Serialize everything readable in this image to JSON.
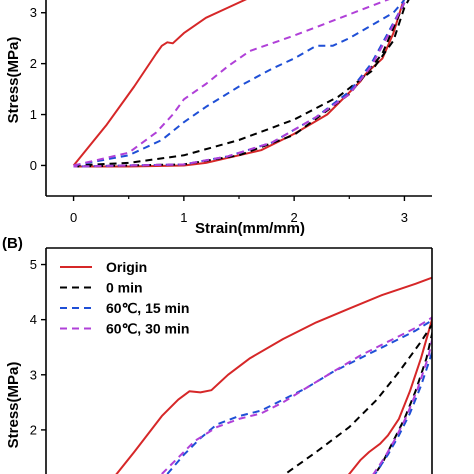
{
  "chart_data": [
    {
      "panel_label": "",
      "type": "line",
      "xlabel": "Strain(mm/mm)",
      "ylabel": "Stress(MPa)",
      "xlim": [
        -0.25,
        3.25
      ],
      "ylim": [
        -0.6,
        3.25
      ],
      "x_ticks": [
        "0",
        "1",
        "2",
        "3"
      ],
      "y_ticks": [
        "0",
        "1",
        "2",
        "3"
      ],
      "series": [
        {
          "key": "origin",
          "color": "#d62728",
          "dash": "solid",
          "points": [
            [
              0,
              0
            ],
            [
              0.3,
              0.8
            ],
            [
              0.55,
              1.55
            ],
            [
              0.75,
              2.2
            ],
            [
              0.8,
              2.35
            ],
            [
              0.85,
              2.42
            ],
            [
              0.9,
              2.4
            ],
            [
              1.0,
              2.6
            ],
            [
              1.2,
              2.9
            ],
            [
              1.4,
              3.1
            ],
            [
              1.6,
              3.3
            ]
          ]
        },
        {
          "key": "origin_return",
          "color": "#d62728",
          "dash": "solid",
          "points": [
            [
              3.0,
              3.3
            ],
            [
              2.9,
              2.6
            ],
            [
              2.8,
              2.1
            ],
            [
              2.7,
              1.9
            ],
            [
              2.65,
              1.8
            ],
            [
              2.6,
              1.65
            ],
            [
              2.3,
              1.0
            ],
            [
              2.0,
              0.62
            ],
            [
              1.7,
              0.3
            ],
            [
              1.4,
              0.15
            ],
            [
              1.2,
              0.05
            ],
            [
              1.0,
              0.0
            ],
            [
              0.5,
              -0.02
            ],
            [
              0,
              -0.02
            ]
          ]
        },
        {
          "key": "0min",
          "color": "#000000",
          "dash": "7,5",
          "points": [
            [
              0,
              0
            ],
            [
              0.5,
              0.05
            ],
            [
              1.0,
              0.2
            ],
            [
              1.5,
              0.5
            ],
            [
              2.0,
              0.9
            ],
            [
              2.4,
              1.35
            ],
            [
              2.7,
              1.85
            ],
            [
              2.9,
              2.45
            ],
            [
              3.0,
              3.1
            ],
            [
              3.05,
              3.3
            ]
          ]
        },
        {
          "key": "0min_return",
          "color": "#000000",
          "dash": "7,5",
          "points": [
            [
              3.0,
              3.2
            ],
            [
              2.8,
              2.2
            ],
            [
              2.5,
              1.4
            ],
            [
              2.0,
              0.6
            ],
            [
              1.5,
              0.2
            ],
            [
              1.0,
              0.02
            ],
            [
              0,
              -0.02
            ]
          ]
        },
        {
          "key": "15min",
          "color": "#1f4fd6",
          "dash": "7,5",
          "points": [
            [
              0,
              0
            ],
            [
              0.5,
              0.2
            ],
            [
              0.8,
              0.5
            ],
            [
              1.0,
              0.85
            ],
            [
              1.2,
              1.15
            ],
            [
              1.5,
              1.55
            ],
            [
              1.8,
              1.9
            ],
            [
              2.0,
              2.1
            ],
            [
              2.2,
              2.35
            ],
            [
              2.35,
              2.35
            ],
            [
              2.5,
              2.5
            ],
            [
              2.7,
              2.75
            ],
            [
              2.9,
              3.0
            ],
            [
              3.0,
              3.25
            ]
          ]
        },
        {
          "key": "15min_return",
          "color": "#1f4fd6",
          "dash": "7,5",
          "points": [
            [
              3.0,
              3.2
            ],
            [
              2.85,
              2.6
            ],
            [
              2.7,
              2.0
            ],
            [
              2.5,
              1.45
            ],
            [
              2.2,
              0.95
            ],
            [
              1.8,
              0.45
            ],
            [
              1.4,
              0.18
            ],
            [
              1.0,
              0.02
            ],
            [
              0,
              -0.02
            ]
          ]
        },
        {
          "key": "30min",
          "color": "#b040d8",
          "dash": "7,5",
          "points": [
            [
              0,
              0
            ],
            [
              0.5,
              0.25
            ],
            [
              0.75,
              0.65
            ],
            [
              0.9,
              1.0
            ],
            [
              1.0,
              1.3
            ],
            [
              1.2,
              1.6
            ],
            [
              1.4,
              1.95
            ],
            [
              1.6,
              2.25
            ],
            [
              1.8,
              2.4
            ],
            [
              2.0,
              2.55
            ],
            [
              2.3,
              2.8
            ],
            [
              2.6,
              3.05
            ],
            [
              2.9,
              3.3
            ]
          ]
        },
        {
          "key": "30min_return",
          "color": "#b040d8",
          "dash": "7,5",
          "points": [
            [
              3.0,
              3.2
            ],
            [
              2.85,
              2.55
            ],
            [
              2.7,
              1.95
            ],
            [
              2.5,
              1.4
            ],
            [
              2.2,
              0.95
            ],
            [
              1.8,
              0.45
            ],
            [
              1.4,
              0.18
            ],
            [
              1.0,
              0.02
            ],
            [
              0,
              -0.02
            ]
          ]
        }
      ]
    },
    {
      "panel_label": "(B)",
      "type": "line",
      "xlabel": "",
      "ylabel": "Stress(MPa)",
      "xlim": [
        -0.25,
        3.25
      ],
      "ylim": [
        1.2,
        5.3
      ],
      "x_ticks": [],
      "y_ticks": [
        "2",
        "3",
        "4",
        "5"
      ],
      "legend": {
        "placement": "top-left",
        "entries": [
          {
            "label": "Origin",
            "color": "#d62728",
            "dash": "solid"
          },
          {
            "label": "0 min",
            "color": "#000000",
            "dash": "7,5"
          },
          {
            "label": "60℃,   15 min",
            "color": "#1f4fd6",
            "dash": "7,5"
          },
          {
            "label": "60℃,   30 min",
            "color": "#b040d8",
            "dash": "7,5"
          }
        ]
      },
      "series": [
        {
          "key": "origin",
          "color": "#d62728",
          "dash": "solid",
          "points": [
            [
              0.35,
              1.1
            ],
            [
              0.55,
              1.6
            ],
            [
              0.8,
              2.25
            ],
            [
              0.95,
              2.55
            ],
            [
              1.05,
              2.7
            ],
            [
              1.15,
              2.68
            ],
            [
              1.25,
              2.72
            ],
            [
              1.4,
              3.0
            ],
            [
              1.6,
              3.3
            ],
            [
              1.9,
              3.65
            ],
            [
              2.2,
              3.95
            ],
            [
              2.5,
              4.2
            ],
            [
              2.8,
              4.45
            ],
            [
              3.1,
              4.65
            ],
            [
              3.3,
              4.8
            ]
          ]
        },
        {
          "key": "origin_return",
          "color": "#d62728",
          "dash": "solid",
          "points": [
            [
              3.3,
              4.8
            ],
            [
              3.25,
              4.0
            ],
            [
              3.15,
              3.3
            ],
            [
              3.05,
              2.7
            ],
            [
              2.95,
              2.2
            ],
            [
              2.85,
              1.9
            ],
            [
              2.78,
              1.75
            ],
            [
              2.68,
              1.6
            ],
            [
              2.6,
              1.45
            ],
            [
              2.5,
              1.2
            ],
            [
              2.45,
              1.1
            ]
          ]
        },
        {
          "key": "0min",
          "color": "#000000",
          "dash": "7,5",
          "points": [
            [
              1.85,
              1.1
            ],
            [
              2.2,
              1.6
            ],
            [
              2.5,
              2.05
            ],
            [
              2.75,
              2.55
            ],
            [
              2.95,
              3.05
            ],
            [
              3.15,
              3.6
            ],
            [
              3.28,
              4.0
            ]
          ]
        },
        {
          "key": "0min_return",
          "color": "#000000",
          "dash": "7,5",
          "points": [
            [
              3.28,
              4.0
            ],
            [
              3.2,
              3.3
            ],
            [
              3.1,
              2.7
            ],
            [
              3.0,
              2.2
            ],
            [
              2.9,
              1.8
            ],
            [
              2.8,
              1.4
            ],
            [
              2.7,
              1.1
            ]
          ]
        },
        {
          "key": "15min",
          "color": "#1f4fd6",
          "dash": "7,5",
          "points": [
            [
              0.85,
              1.2
            ],
            [
              1.0,
              1.55
            ],
            [
              1.15,
              1.85
            ],
            [
              1.3,
              2.1
            ],
            [
              1.5,
              2.25
            ],
            [
              1.7,
              2.35
            ],
            [
              1.9,
              2.55
            ],
            [
              2.1,
              2.75
            ],
            [
              2.35,
              3.05
            ],
            [
              2.6,
              3.3
            ],
            [
              2.85,
              3.55
            ],
            [
              3.1,
              3.8
            ],
            [
              3.3,
              4.05
            ]
          ]
        },
        {
          "key": "15min_return",
          "color": "#1f4fd6",
          "dash": "7,5",
          "points": [
            [
              3.3,
              4.05
            ],
            [
              3.25,
              3.4
            ],
            [
              3.15,
              2.8
            ],
            [
              3.05,
              2.3
            ],
            [
              2.95,
              1.9
            ],
            [
              2.85,
              1.55
            ],
            [
              2.75,
              1.25
            ],
            [
              2.7,
              1.1
            ]
          ]
        },
        {
          "key": "30min",
          "color": "#b040d8",
          "dash": "7,5",
          "points": [
            [
              0.8,
              1.2
            ],
            [
              0.95,
              1.5
            ],
            [
              1.1,
              1.8
            ],
            [
              1.3,
              2.05
            ],
            [
              1.5,
              2.2
            ],
            [
              1.7,
              2.3
            ],
            [
              1.9,
              2.5
            ],
            [
              2.1,
              2.75
            ],
            [
              2.35,
              3.05
            ],
            [
              2.6,
              3.35
            ],
            [
              2.85,
              3.6
            ],
            [
              3.1,
              3.85
            ],
            [
              3.3,
              4.1
            ]
          ]
        },
        {
          "key": "30min_return",
          "color": "#b040d8",
          "dash": "7,5",
          "points": [
            [
              3.3,
              4.1
            ],
            [
              3.22,
              3.35
            ],
            [
              3.12,
              2.75
            ],
            [
              3.02,
              2.25
            ],
            [
              2.92,
              1.85
            ],
            [
              2.82,
              1.5
            ],
            [
              2.72,
              1.2
            ],
            [
              2.68,
              1.1
            ]
          ]
        }
      ]
    }
  ]
}
